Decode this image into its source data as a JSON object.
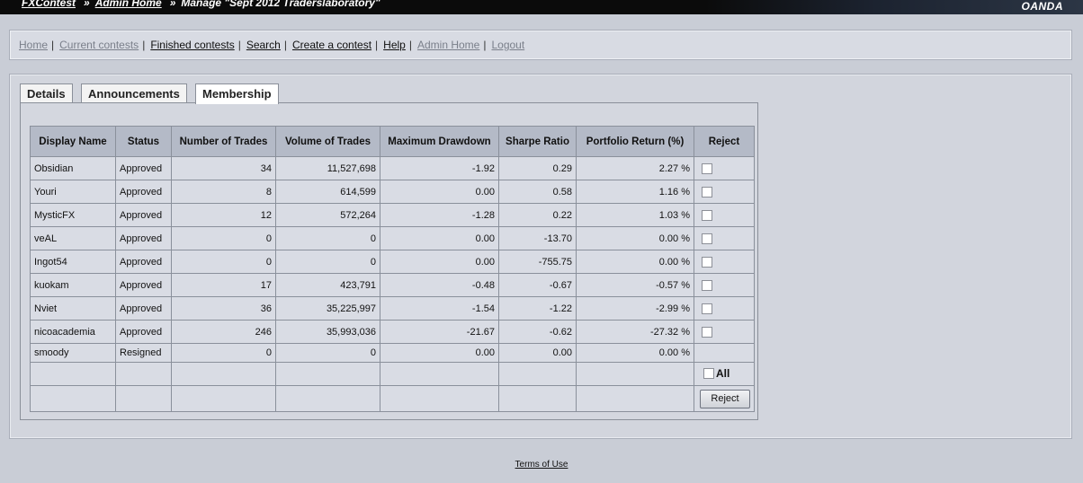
{
  "header": {
    "crumb_1": "FXContest",
    "crumb_2": "Admin Home",
    "crumb_3": "Manage \"Sept 2012 Traderslaboratory\"",
    "separator": "»",
    "brand": "OANDA"
  },
  "nav": {
    "items": [
      {
        "label": "Home"
      },
      {
        "label": "Current contests"
      },
      {
        "label": "Finished contests"
      },
      {
        "label": "Search"
      },
      {
        "label": "Create a contest"
      },
      {
        "label": "Help"
      },
      {
        "label": "Admin Home"
      },
      {
        "label": "Logout"
      }
    ],
    "separator": "|"
  },
  "tabs": [
    {
      "label": "Details"
    },
    {
      "label": "Announcements"
    },
    {
      "label": "Membership"
    }
  ],
  "table": {
    "headers": [
      "Display Name",
      "Status",
      "Number of Trades",
      "Volume of Trades",
      "Maximum Drawdown",
      "Sharpe Ratio",
      "Portfolio Return (%)",
      "Reject"
    ],
    "rows": [
      {
        "name": "Obsidian",
        "status": "Approved",
        "trades": "34",
        "volume": "11,527,698",
        "drawdown": "-1.92",
        "sharpe": "0.29",
        "return": "2.27 %"
      },
      {
        "name": "Youri",
        "status": "Approved",
        "trades": "8",
        "volume": "614,599",
        "drawdown": "0.00",
        "sharpe": "0.58",
        "return": "1.16 %"
      },
      {
        "name": "MysticFX",
        "status": "Approved",
        "trades": "12",
        "volume": "572,264",
        "drawdown": "-1.28",
        "sharpe": "0.22",
        "return": "1.03 %"
      },
      {
        "name": "veAL",
        "status": "Approved",
        "trades": "0",
        "volume": "0",
        "drawdown": "0.00",
        "sharpe": "-13.70",
        "return": "0.00 %"
      },
      {
        "name": "Ingot54",
        "status": "Approved",
        "trades": "0",
        "volume": "0",
        "drawdown": "0.00",
        "sharpe": "-755.75",
        "return": "0.00 %"
      },
      {
        "name": "kuokam",
        "status": "Approved",
        "trades": "17",
        "volume": "423,791",
        "drawdown": "-0.48",
        "sharpe": "-0.67",
        "return": "-0.57 %"
      },
      {
        "name": "Nviet",
        "status": "Approved",
        "trades": "36",
        "volume": "35,225,997",
        "drawdown": "-1.54",
        "sharpe": "-1.22",
        "return": "-2.99 %"
      },
      {
        "name": "nicoacademia",
        "status": "Approved",
        "trades": "246",
        "volume": "35,993,036",
        "drawdown": "-21.67",
        "sharpe": "-0.62",
        "return": "-27.32 %"
      },
      {
        "name": "smoody",
        "status": "Resigned",
        "trades": "0",
        "volume": "0",
        "drawdown": "0.00",
        "sharpe": "0.00",
        "return": "0.00 %"
      }
    ],
    "all_label": "All",
    "reject_button": "Reject"
  },
  "footer": {
    "terms": "Terms of Use"
  }
}
